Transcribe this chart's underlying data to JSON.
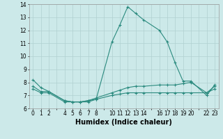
{
  "xlabel": "Humidex (Indice chaleur)",
  "x_ticks": [
    0,
    1,
    2,
    4,
    5,
    6,
    7,
    8,
    10,
    11,
    12,
    13,
    14,
    16,
    17,
    18,
    19,
    20,
    22,
    23
  ],
  "line1_x": [
    0,
    1,
    2,
    4,
    5,
    6,
    7,
    8,
    10,
    11,
    12,
    13,
    14,
    16,
    17,
    18,
    19,
    20,
    22,
    23
  ],
  "line1_y": [
    8.2,
    7.6,
    7.3,
    6.6,
    6.5,
    6.5,
    6.6,
    6.7,
    11.1,
    12.4,
    13.8,
    13.3,
    12.8,
    12.0,
    11.1,
    9.5,
    8.1,
    8.1,
    7.0,
    7.8
  ],
  "line2_x": [
    0,
    1,
    2,
    4,
    5,
    6,
    7,
    8,
    10,
    11,
    12,
    13,
    14,
    16,
    17,
    18,
    19,
    20,
    22,
    23
  ],
  "line2_y": [
    7.7,
    7.3,
    7.3,
    6.6,
    6.5,
    6.5,
    6.6,
    6.8,
    7.2,
    7.4,
    7.6,
    7.7,
    7.7,
    7.8,
    7.8,
    7.8,
    7.9,
    8.0,
    7.2,
    7.7
  ],
  "line3_x": [
    0,
    1,
    2,
    4,
    5,
    6,
    7,
    8,
    10,
    11,
    12,
    13,
    14,
    16,
    17,
    18,
    19,
    20,
    22,
    23
  ],
  "line3_y": [
    7.5,
    7.2,
    7.2,
    6.5,
    6.5,
    6.5,
    6.5,
    6.7,
    7.0,
    7.1,
    7.2,
    7.2,
    7.2,
    7.2,
    7.2,
    7.2,
    7.2,
    7.2,
    7.2,
    7.5
  ],
  "line_color": "#2a8a7e",
  "bg_color": "#cce9e9",
  "grid_color": "#b8d8d8",
  "ylim": [
    6,
    14
  ],
  "yticks": [
    6,
    7,
    8,
    9,
    10,
    11,
    12,
    13,
    14
  ],
  "tick_fontsize": 5.5,
  "label_fontsize": 7.0
}
